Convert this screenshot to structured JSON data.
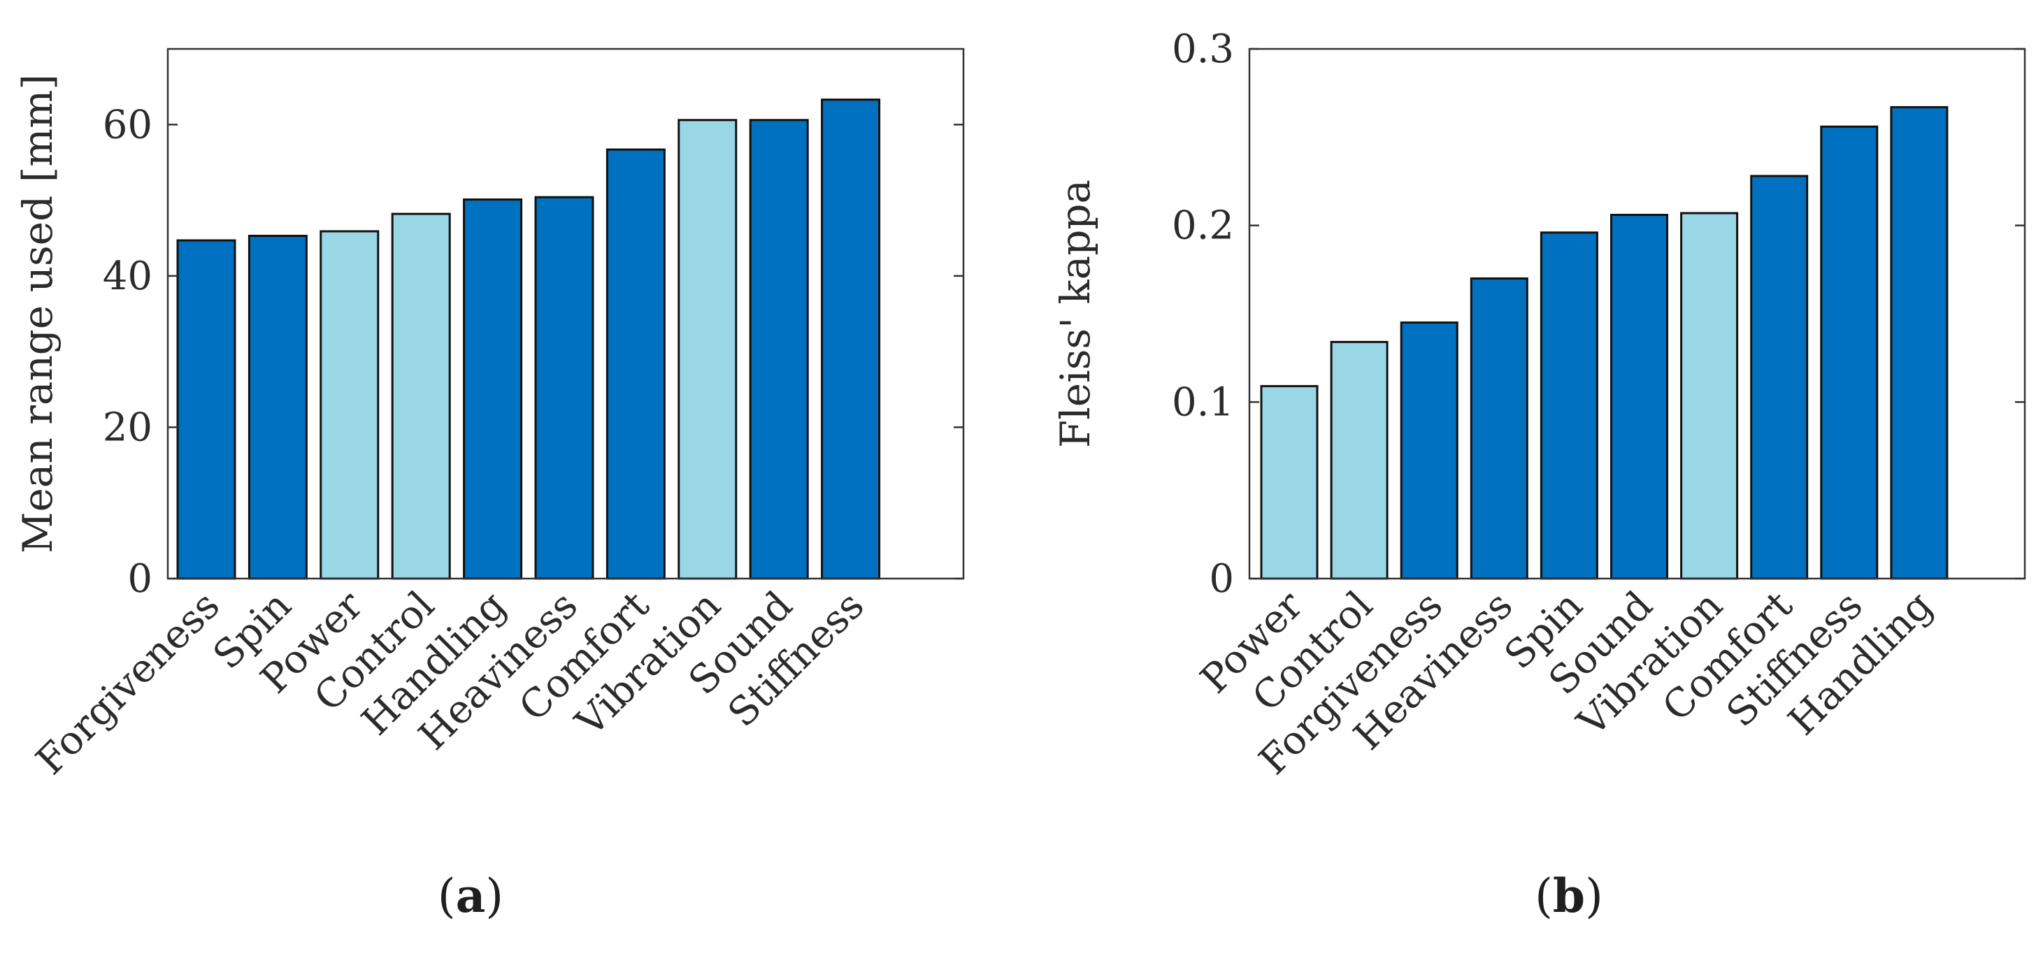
{
  "colors": {
    "dark": "#0070c0",
    "light": "#99d7e7"
  },
  "chart_data": [
    {
      "type": "bar",
      "panel_label": "a",
      "title": "",
      "xlabel": "",
      "ylabel": "Mean range used [mm]",
      "ylim": [
        0,
        70
      ],
      "yticks": [
        0,
        20,
        40,
        60
      ],
      "ytick_labels": [
        "0",
        "20",
        "40",
        "60"
      ],
      "categories": [
        "Forgiveness",
        "Spin",
        "Power",
        "Control",
        "Handling",
        "Heaviness",
        "Comfort",
        "Vibration",
        "Sound",
        "Stiffness"
      ],
      "values": [
        44.7,
        45.3,
        45.9,
        48.2,
        50.1,
        50.4,
        56.7,
        60.6,
        60.6,
        63.3
      ],
      "bar_colors": [
        "dark",
        "dark",
        "light",
        "light",
        "dark",
        "dark",
        "dark",
        "light",
        "dark",
        "dark"
      ]
    },
    {
      "type": "bar",
      "panel_label": "b",
      "title": "",
      "xlabel": "",
      "ylabel": "Fleiss' kappa",
      "ylim": [
        0,
        0.3
      ],
      "yticks": [
        0,
        0.1,
        0.2,
        0.3
      ],
      "ytick_labels": [
        "0",
        "0.1",
        "0.2",
        "0.3"
      ],
      "categories": [
        "Power",
        "Control",
        "Forgiveness",
        "Heaviness",
        "Spin",
        "Sound",
        "Vibration",
        "Comfort",
        "Stiffness",
        "Handling"
      ],
      "values": [
        0.109,
        0.134,
        0.145,
        0.17,
        0.196,
        0.206,
        0.207,
        0.228,
        0.256,
        0.267
      ],
      "bar_colors": [
        "light",
        "light",
        "dark",
        "dark",
        "dark",
        "dark",
        "light",
        "dark",
        "dark",
        "dark"
      ]
    }
  ]
}
